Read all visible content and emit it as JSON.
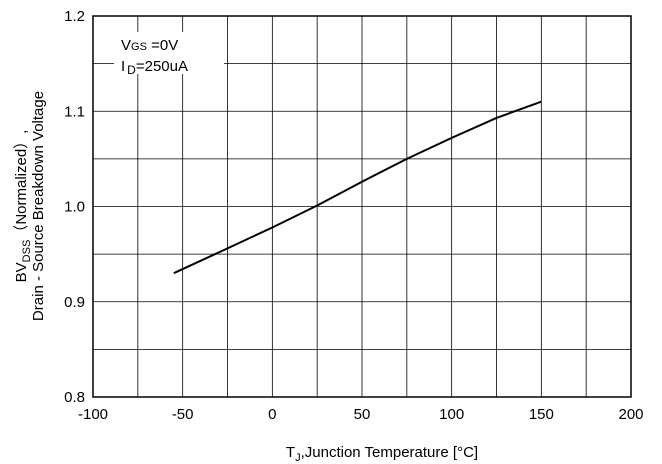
{
  "chart_data": {
    "type": "line",
    "title": "",
    "xlabel": {
      "main": "T",
      "sub": "J",
      "rest": ",Junction Temperature [°C]"
    },
    "ylabel": {
      "line1_main": "BV",
      "line1_sub": "DSS",
      "line1_rest": "（Normalized）,",
      "line2": "Drain - Source Breakdown Voltage"
    },
    "xlim": [
      -100,
      200
    ],
    "ylim": [
      0.8,
      1.2
    ],
    "xticks": [
      -100,
      -50,
      0,
      50,
      100,
      150,
      200
    ],
    "xtick_labels": [
      "-100",
      "-50",
      "0",
      "50",
      "100",
      "150",
      "200"
    ],
    "yticks": [
      0.8,
      0.9,
      1.0,
      1.1,
      1.2
    ],
    "ytick_labels": [
      "0.8",
      "0.9",
      "1.0",
      "1.1",
      "1.2"
    ],
    "x_grid_step": 25,
    "y_grid_step": 0.05,
    "grid": true,
    "annotations": {
      "vgs_main": "V",
      "vgs_sub": "GS",
      "vgs_rest": " =0V",
      "id_main": "I",
      "id_sub": "D",
      "id_rest": "=250uA"
    },
    "series": [
      {
        "color": "#000000",
        "x": [
          -55,
          -25,
          0,
          25,
          50,
          75,
          100,
          125,
          150
        ],
        "y": [
          0.93,
          0.956,
          0.978,
          1.001,
          1.026,
          1.05,
          1.072,
          1.093,
          1.11
        ]
      }
    ]
  }
}
